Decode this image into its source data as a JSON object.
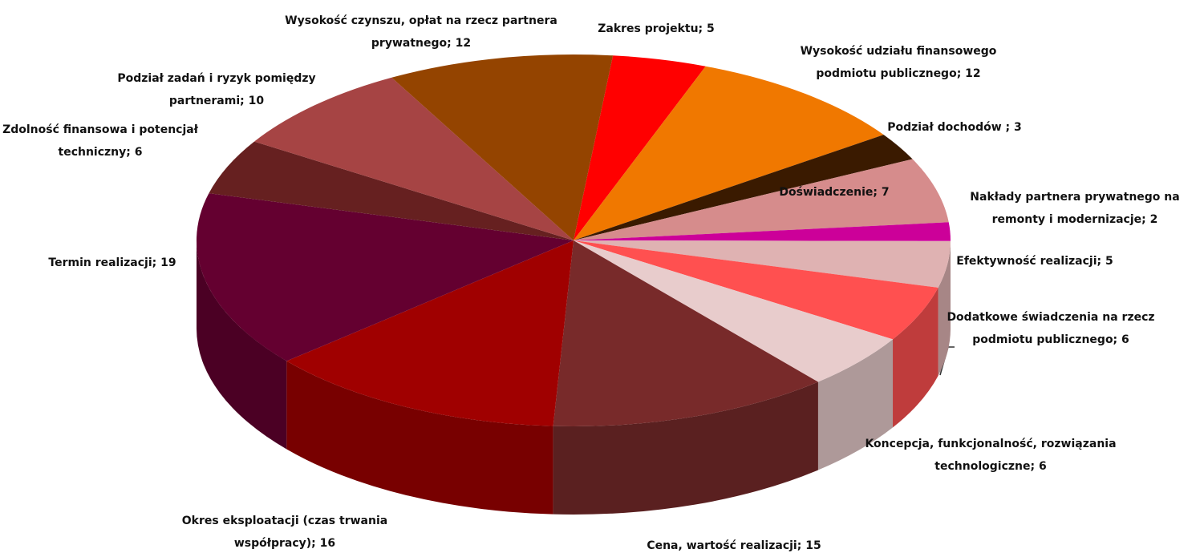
{
  "chart_data": {
    "type": "pie3d",
    "labels": [
      "Zakres projektu; 5",
      "Wysokość udziału  finansowego podmiotu publicznego; 12",
      "Podział dochodów  ; 3",
      "Doświadczenie; 7",
      "Nakłady partnera prywatnego na remonty i modernizacje; 2",
      "Efektywność realizacji; 5",
      "Dodatkowe świadczenia  na rzecz podmiotu publicznego; 6",
      "Koncepcja, funkcjonalność, rozwiązania technologiczne; 6",
      "Cena, wartość realizacji; 15",
      "Okres eksploatacji  (czas trwania współpracy); 16",
      "Termin realizacji;  19",
      "Zdolność finansowa  i potencjał techniczny; 6",
      "Podział zadań  i ryzyk pomiędzy partnerami; 10",
      "Wysokość czynszu,  opłat na rzecz partnera prywatnego; 12"
    ],
    "values": [
      5,
      12,
      3,
      7,
      2,
      5,
      6,
      6,
      15,
      16,
      19,
      6,
      10,
      12
    ],
    "colors": [
      "#ff0000",
      "#f07800",
      "#3a1a00",
      "#d68c8c",
      "#cc0099",
      "#dfb2b2",
      "#ff5050",
      "#e8cccc",
      "#782a2a",
      "#a00000",
      "#640030",
      "#662020",
      "#a64444",
      "#944400"
    ]
  }
}
